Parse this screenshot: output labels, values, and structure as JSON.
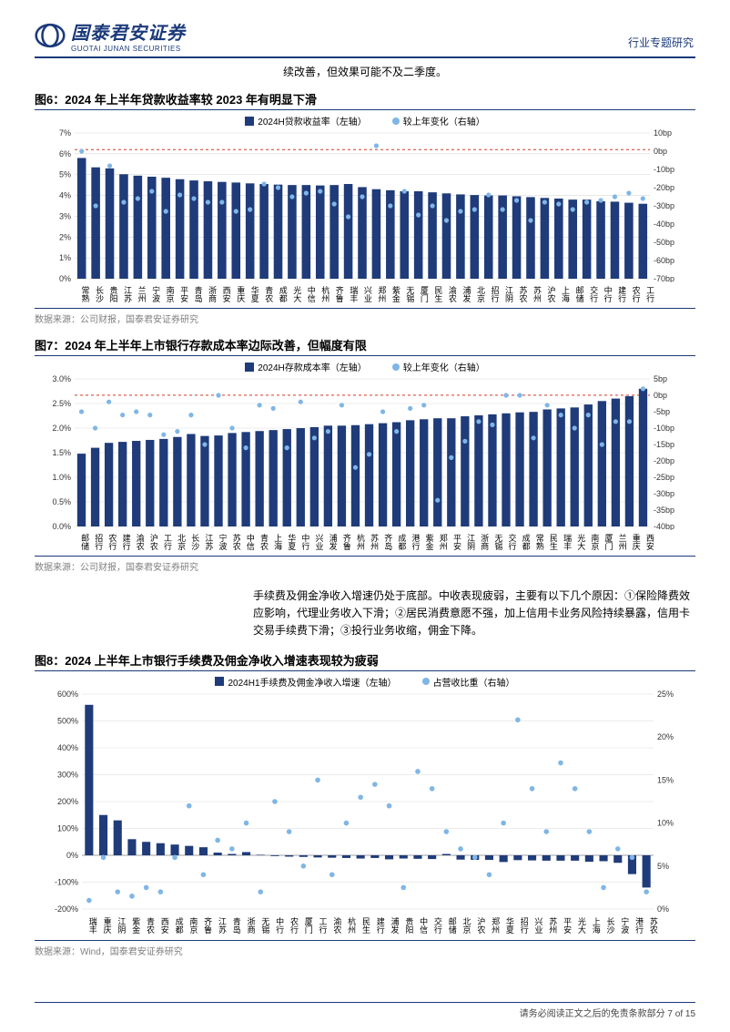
{
  "header": {
    "brand_cn": "国泰君安证券",
    "brand_en": "GUOTAI JUNAN SECURITIES",
    "doc_type": "行业专题研究",
    "logo_stroke": "#1b3a7a"
  },
  "intro_line": "续改善，但效果可能不及二季度。",
  "source1": "数据来源：公司财报，国泰君安证券研究",
  "source2": "数据来源：公司财报，国泰君安证券研究",
  "source3": "数据来源：Wind，国泰君安证券研究",
  "body_para": "手续费及佣金净收入增速仍处于底部。中收表现疲弱，主要有以下几个原因：①保险降费效应影响，代理业务收入下滑；②居民消费意愿不强，加上信用卡业务风险持续暴露，信用卡交易手续费下滑；③投行业务收缩，佣金下降。",
  "footer": "请务必阅读正文之后的免责条款部分 7 of 15",
  "chart6": {
    "title": "图6：2024 年上半年贷款收益率较 2023 年有明显下滑",
    "legend_a": "2024H贷款收益率（左轴）",
    "legend_b": "较上年变化（右轴）",
    "bar_color": "#1f3b7a",
    "dot_color": "#7fb6e6",
    "grid_color": "#d9d9d9",
    "ref_line_color": "#d23a2a",
    "ref_line_y_left": 6.2,
    "background": "#ffffff",
    "y_left": {
      "min": 0,
      "max": 7,
      "step": 1,
      "fmt": "%",
      "ticks": [
        "0%",
        "1%",
        "2%",
        "3%",
        "4%",
        "5%",
        "6%",
        "7%"
      ]
    },
    "y_right": {
      "min": -70,
      "max": 10,
      "step": 10,
      "ticks": [
        "-70bp",
        "-60bp",
        "-50bp",
        "-40bp",
        "-30bp",
        "-20bp",
        "-10bp",
        "0bp",
        "10bp"
      ]
    },
    "labels": [
      "常熟",
      "长沙",
      "贵阳",
      "江苏",
      "兰州",
      "宁波",
      "南京",
      "平安",
      "青岛",
      "浙商",
      "西安",
      "重庆",
      "华夏",
      "青农",
      "成都",
      "光大",
      "中信",
      "杭州",
      "齐鲁",
      "瑞丰",
      "兴业",
      "郑州",
      "紫金",
      "无锡",
      "厦门",
      "民生",
      "渝农",
      "浦发",
      "北京",
      "招行",
      "江阴",
      "苏农",
      "苏州",
      "沪农",
      "上海",
      "邮储",
      "交行",
      "中行",
      "建行",
      "农行",
      "工行"
    ],
    "bars": [
      5.8,
      5.35,
      5.3,
      5.02,
      4.95,
      4.9,
      4.85,
      4.78,
      4.72,
      4.68,
      4.65,
      4.62,
      4.58,
      4.55,
      4.52,
      4.5,
      4.5,
      4.48,
      4.5,
      4.55,
      4.4,
      4.3,
      4.25,
      4.2,
      4.2,
      4.15,
      4.1,
      4.05,
      4.02,
      4.0,
      4.0,
      3.96,
      3.92,
      3.88,
      3.85,
      3.8,
      3.8,
      3.72,
      3.7,
      3.65,
      3.6
    ],
    "dots": [
      0,
      -30,
      -8,
      -28,
      -26,
      -22,
      -33,
      -24,
      -26,
      -28,
      -28,
      -33,
      -32,
      -18,
      -20,
      -25,
      -23,
      -22,
      -29,
      -36,
      -25,
      3,
      -30,
      -22,
      -35,
      -30,
      -38,
      -33,
      -32,
      -24,
      -32,
      -27,
      -38,
      -28,
      -29,
      -32,
      -28,
      -27,
      -25,
      -23,
      -26
    ]
  },
  "chart7": {
    "title": "图7：2024 年上半年上市银行存款成本率边际改善，但幅度有限",
    "legend_a": "2024H存款成本率（左轴）",
    "legend_b": "较上年变化（右轴）",
    "bar_color": "#1f3b7a",
    "dot_color": "#7fb6e6",
    "grid_color": "#d9d9d9",
    "ref_line_color": "#d23a2a",
    "ref_line_y_left": 2.67,
    "background": "#ffffff",
    "y_left": {
      "min": 0,
      "max": 3,
      "step": 0.5,
      "ticks": [
        "0.0%",
        "0.5%",
        "1.0%",
        "1.5%",
        "2.0%",
        "2.5%",
        "3.0%"
      ]
    },
    "y_right": {
      "min": -40,
      "max": 5,
      "step": 5,
      "ticks": [
        "-40bp",
        "-35bp",
        "-30bp",
        "-25bp",
        "-20bp",
        "-15bp",
        "-10bp",
        "-5bp",
        "0bp",
        "5bp"
      ]
    },
    "labels": [
      "邮储",
      "招行",
      "农行",
      "建行",
      "渝农",
      "沪农",
      "工行",
      "北京",
      "长沙",
      "江苏",
      "宁波",
      "苏农",
      "中信",
      "青农",
      "上海",
      "华夏",
      "中行",
      "兴业",
      "浦发",
      "齐鲁",
      "杭州",
      "苏州",
      "齐岛",
      "成都",
      "港行",
      "紫金",
      "郑州",
      "平安",
      "江阴",
      "浙商",
      "无锡",
      "交行",
      "成都",
      "常熟",
      "民生",
      "瑞丰",
      "光大",
      "南京",
      "厦门",
      "兰州",
      "重庆",
      "西安"
    ],
    "bars": [
      1.48,
      1.6,
      1.7,
      1.72,
      1.74,
      1.76,
      1.78,
      1.82,
      1.88,
      1.84,
      1.85,
      1.9,
      1.92,
      1.94,
      1.96,
      1.98,
      2.0,
      2.02,
      2.05,
      2.05,
      2.06,
      2.08,
      2.1,
      2.12,
      2.16,
      2.18,
      2.2,
      2.2,
      2.24,
      2.26,
      2.28,
      2.3,
      2.32,
      2.33,
      2.38,
      2.4,
      2.42,
      2.48,
      2.55,
      2.6,
      2.65,
      2.8
    ],
    "dots": [
      -5,
      -10,
      -2,
      -6,
      -5,
      -6,
      -12,
      -11,
      -6,
      -15,
      0,
      -10,
      -16,
      -3,
      -4,
      -16,
      -2,
      -13,
      -11,
      -3,
      -22,
      -18,
      -5,
      -11,
      -4,
      -3,
      -32,
      -19,
      -14,
      -8,
      -9,
      0,
      0,
      -13,
      -3,
      -6,
      -10,
      -6,
      -15,
      -8,
      -8,
      2
    ]
  },
  "chart8": {
    "title": "图8：2024 上半年上市银行手续费及佣金净收入增速表现较为疲弱",
    "legend_a": "2024H1手续费及佣金净收入增速（左轴）",
    "legend_b": "占营收比重（右轴）",
    "bar_color": "#1f3b7a",
    "dot_color": "#7fb6e6",
    "grid_color": "#d9d9d9",
    "background": "#ffffff",
    "y_left": {
      "min": -200,
      "max": 600,
      "step": 100,
      "ticks": [
        "-200%",
        "-100%",
        "0%",
        "100%",
        "200%",
        "300%",
        "400%",
        "500%",
        "600%"
      ]
    },
    "y_right": {
      "min": 0,
      "max": 25,
      "step": 5,
      "ticks": [
        "0%",
        "5%",
        "10%",
        "15%",
        "20%",
        "25%"
      ]
    },
    "labels": [
      "瑞丰",
      "重庆",
      "江阴",
      "紫金",
      "青农",
      "西安",
      "成都",
      "南京",
      "齐鲁",
      "江苏",
      "青岛",
      "浙商",
      "无锡",
      "中行",
      "农行",
      "厦门",
      "工行",
      "渝农",
      "杭州",
      "民生",
      "建行",
      "浦发",
      "贵阳",
      "中信",
      "交行",
      "邮储",
      "北京",
      "沪农",
      "郑州",
      "华夏",
      "招行",
      "兴业",
      "苏州",
      "平安",
      "光大",
      "上海",
      "长沙",
      "宁波",
      "港行",
      "苏农"
    ],
    "bars": [
      560,
      150,
      130,
      60,
      50,
      45,
      40,
      35,
      30,
      10,
      5,
      12,
      2,
      -3,
      -5,
      -6,
      -8,
      -9,
      -10,
      -12,
      -10,
      -15,
      -12,
      -13,
      -14,
      5,
      -16,
      -17,
      -17,
      -25,
      -18,
      -19,
      -20,
      -20,
      -20,
      -24,
      -22,
      -28,
      -70,
      -120
    ],
    "dots": [
      1,
      6,
      2,
      1.5,
      2.5,
      2,
      6,
      12,
      4,
      8,
      7,
      10,
      2,
      12.5,
      9,
      5,
      15,
      4,
      10,
      13,
      14.5,
      12,
      2.5,
      16,
      14,
      9,
      7,
      6,
      4,
      10,
      22,
      14,
      9,
      17,
      14,
      9,
      2.5,
      7,
      6,
      2
    ]
  }
}
